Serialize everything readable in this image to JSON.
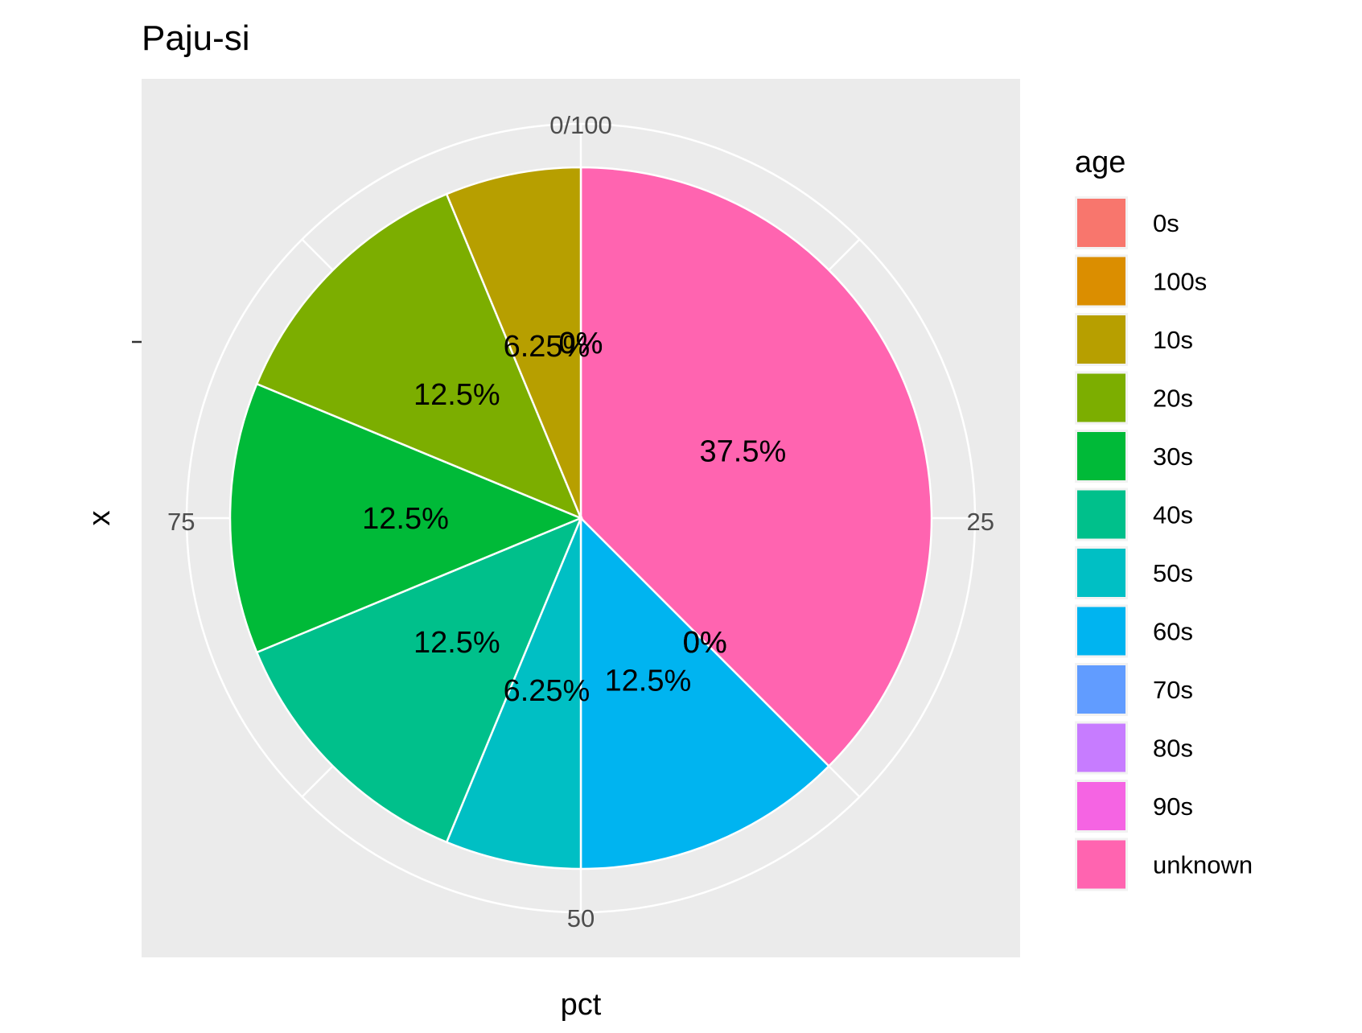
{
  "chart_data": {
    "type": "pie",
    "title": "Paju-si",
    "xlabel": "pct",
    "ylabel": "x",
    "theta_ticks": [
      "0/100",
      "25",
      "50",
      "75"
    ],
    "legend": {
      "title": "age",
      "position": "right"
    },
    "categories": [
      "0s",
      "100s",
      "10s",
      "20s",
      "30s",
      "40s",
      "50s",
      "60s",
      "70s",
      "80s",
      "90s",
      "unknown"
    ],
    "colors": [
      "#F8766D",
      "#DB8E00",
      "#B79F00",
      "#7CAE00",
      "#00BA38",
      "#00C08B",
      "#00BFC4",
      "#00B4F0",
      "#619CFF",
      "#C77CFF",
      "#F564E3",
      "#FF64B0"
    ],
    "values": [
      0,
      0,
      6.25,
      12.5,
      12.5,
      12.5,
      6.25,
      12.5,
      0,
      0,
      0,
      37.5
    ],
    "labels": [
      "0%",
      "0%",
      "6.25%",
      "12.5%",
      "12.5%",
      "12.5%",
      "6.25%",
      "12.5%",
      "0%",
      "0%",
      "0%",
      "37.5%"
    ],
    "grid": true
  }
}
